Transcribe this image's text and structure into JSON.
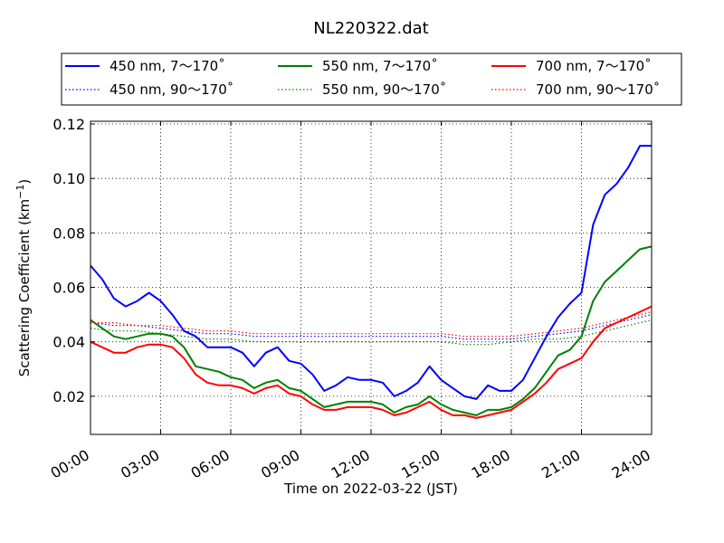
{
  "chart_data": {
    "type": "line",
    "title": "NL220322.dat",
    "xlabel": "Time on 2022-03-22 (JST)",
    "ylabel_main": "Scattering Coefficient (km",
    "ylabel_exp": "−1",
    "ylabel_end": ")",
    "x_unit": "hour",
    "xlim": [
      0,
      24
    ],
    "ylim": [
      0.006,
      0.121
    ],
    "grid": true,
    "legend_location": "top-center",
    "x_ticks": [
      {
        "value": 0,
        "label": "00:00"
      },
      {
        "value": 3,
        "label": "03:00"
      },
      {
        "value": 6,
        "label": "06:00"
      },
      {
        "value": 9,
        "label": "09:00"
      },
      {
        "value": 12,
        "label": "12:00"
      },
      {
        "value": 15,
        "label": "15:00"
      },
      {
        "value": 18,
        "label": "18:00"
      },
      {
        "value": 21,
        "label": "21:00"
      },
      {
        "value": 24,
        "label": "24:00"
      }
    ],
    "y_ticks": [
      {
        "value": 0.02,
        "label": "0.02"
      },
      {
        "value": 0.04,
        "label": "0.04"
      },
      {
        "value": 0.06,
        "label": "0.06"
      },
      {
        "value": 0.08,
        "label": "0.08"
      },
      {
        "value": 0.1,
        "label": "0.10"
      },
      {
        "value": 0.12,
        "label": "0.12"
      }
    ],
    "series": [
      {
        "name": "450 nm, 7～170˚",
        "color": "#0000ff",
        "style": "solid",
        "x": [
          0,
          0.5,
          1,
          1.5,
          2,
          2.5,
          3,
          3.5,
          4,
          4.5,
          5,
          5.5,
          6,
          6.5,
          7,
          7.5,
          8,
          8.5,
          9,
          9.5,
          10,
          10.5,
          11,
          11.5,
          12,
          12.5,
          13,
          13.5,
          14,
          14.5,
          15,
          15.5,
          16,
          16.5,
          17,
          17.5,
          18,
          18.5,
          19,
          19.5,
          20,
          20.5,
          21,
          21.5,
          22,
          22.5,
          23,
          23.5,
          24
        ],
        "y": [
          0.068,
          0.063,
          0.056,
          0.053,
          0.055,
          0.058,
          0.055,
          0.05,
          0.044,
          0.042,
          0.038,
          0.038,
          0.038,
          0.036,
          0.031,
          0.036,
          0.038,
          0.033,
          0.032,
          0.028,
          0.022,
          0.024,
          0.027,
          0.026,
          0.026,
          0.025,
          0.02,
          0.022,
          0.025,
          0.031,
          0.026,
          0.023,
          0.02,
          0.019,
          0.024,
          0.022,
          0.022,
          0.026,
          0.034,
          0.042,
          0.049,
          0.054,
          0.058,
          0.083,
          0.094,
          0.098,
          0.104,
          0.112,
          0.112
        ]
      },
      {
        "name": "450 nm, 90～170˚",
        "color": "#0000ff",
        "style": "dotted",
        "x": [
          0,
          1,
          2,
          3,
          4,
          5,
          6,
          7,
          8,
          9,
          10,
          11,
          12,
          13,
          14,
          15,
          16,
          17,
          18,
          19,
          20,
          21,
          22,
          23,
          24
        ],
        "y": [
          0.047,
          0.046,
          0.046,
          0.045,
          0.044,
          0.043,
          0.043,
          0.042,
          0.042,
          0.042,
          0.042,
          0.042,
          0.042,
          0.042,
          0.042,
          0.042,
          0.041,
          0.041,
          0.041,
          0.042,
          0.043,
          0.044,
          0.046,
          0.048,
          0.05
        ]
      },
      {
        "name": "550 nm, 7～170˚",
        "color": "#008000",
        "style": "solid",
        "x": [
          0,
          0.5,
          1,
          1.5,
          2,
          2.5,
          3,
          3.5,
          4,
          4.5,
          5,
          5.5,
          6,
          6.5,
          7,
          7.5,
          8,
          8.5,
          9,
          9.5,
          10,
          10.5,
          11,
          11.5,
          12,
          12.5,
          13,
          13.5,
          14,
          14.5,
          15,
          15.5,
          16,
          16.5,
          17,
          17.5,
          18,
          18.5,
          19,
          19.5,
          20,
          20.5,
          21,
          21.5,
          22,
          22.5,
          23,
          23.5,
          24
        ],
        "y": [
          0.048,
          0.045,
          0.042,
          0.041,
          0.042,
          0.043,
          0.043,
          0.042,
          0.038,
          0.031,
          0.03,
          0.029,
          0.027,
          0.026,
          0.023,
          0.025,
          0.026,
          0.023,
          0.022,
          0.019,
          0.016,
          0.017,
          0.018,
          0.018,
          0.018,
          0.017,
          0.014,
          0.016,
          0.017,
          0.02,
          0.017,
          0.015,
          0.014,
          0.013,
          0.015,
          0.015,
          0.016,
          0.019,
          0.023,
          0.029,
          0.035,
          0.037,
          0.042,
          0.055,
          0.062,
          0.066,
          0.07,
          0.074,
          0.075
        ]
      },
      {
        "name": "550 nm, 90～170˚",
        "color": "#008000",
        "style": "dotted",
        "x": [
          0,
          1,
          2,
          3,
          4,
          5,
          6,
          7,
          8,
          9,
          10,
          11,
          12,
          13,
          14,
          15,
          16,
          17,
          18,
          19,
          20,
          21,
          22,
          23,
          24
        ],
        "y": [
          0.045,
          0.044,
          0.044,
          0.043,
          0.042,
          0.041,
          0.041,
          0.04,
          0.04,
          0.04,
          0.04,
          0.04,
          0.04,
          0.04,
          0.04,
          0.04,
          0.039,
          0.039,
          0.04,
          0.041,
          0.041,
          0.042,
          0.044,
          0.046,
          0.048
        ]
      },
      {
        "name": "700 nm, 7～170˚",
        "color": "#ff0000",
        "style": "solid",
        "x": [
          0,
          0.5,
          1,
          1.5,
          2,
          2.5,
          3,
          3.5,
          4,
          4.5,
          5,
          5.5,
          6,
          6.5,
          7,
          7.5,
          8,
          8.5,
          9,
          9.5,
          10,
          10.5,
          11,
          11.5,
          12,
          12.5,
          13,
          13.5,
          14,
          14.5,
          15,
          15.5,
          16,
          16.5,
          17,
          17.5,
          18,
          18.5,
          19,
          19.5,
          20,
          20.5,
          21,
          21.5,
          22,
          22.5,
          23,
          23.5,
          24
        ],
        "y": [
          0.04,
          0.038,
          0.036,
          0.036,
          0.038,
          0.039,
          0.039,
          0.038,
          0.034,
          0.028,
          0.025,
          0.024,
          0.024,
          0.023,
          0.021,
          0.023,
          0.024,
          0.021,
          0.02,
          0.017,
          0.015,
          0.015,
          0.016,
          0.016,
          0.016,
          0.015,
          0.013,
          0.014,
          0.016,
          0.018,
          0.015,
          0.013,
          0.013,
          0.012,
          0.013,
          0.014,
          0.015,
          0.018,
          0.021,
          0.025,
          0.03,
          0.032,
          0.034,
          0.04,
          0.045,
          0.047,
          0.049,
          0.051,
          0.053
        ]
      },
      {
        "name": "700 nm, 90～170˚",
        "color": "#ff0000",
        "style": "dotted",
        "x": [
          0,
          1,
          2,
          3,
          4,
          5,
          6,
          7,
          8,
          9,
          10,
          11,
          12,
          13,
          14,
          15,
          16,
          17,
          18,
          19,
          20,
          21,
          22,
          23,
          24
        ],
        "y": [
          0.047,
          0.047,
          0.046,
          0.046,
          0.045,
          0.044,
          0.044,
          0.043,
          0.043,
          0.043,
          0.043,
          0.043,
          0.043,
          0.043,
          0.043,
          0.043,
          0.042,
          0.042,
          0.042,
          0.043,
          0.044,
          0.045,
          0.047,
          0.049,
          0.051
        ]
      }
    ]
  }
}
